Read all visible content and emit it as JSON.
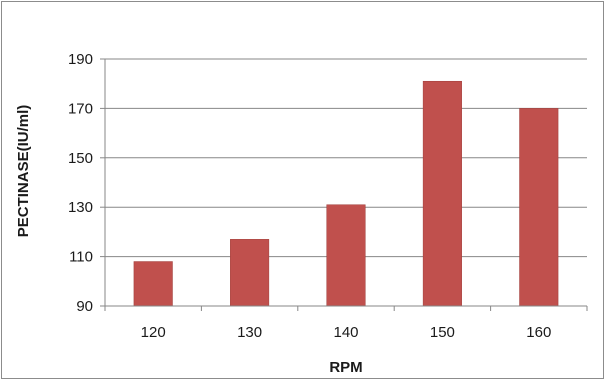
{
  "chart_data": {
    "type": "bar",
    "title": "",
    "xlabel": "RPM",
    "ylabel": "PECTINASE(IU/ml)",
    "categories": [
      "120",
      "130",
      "140",
      "150",
      "160"
    ],
    "values": [
      108,
      117,
      131,
      181,
      170
    ],
    "ylim": [
      90,
      190
    ],
    "yticks": [
      "90",
      "110",
      "130",
      "150",
      "170",
      "190"
    ],
    "grid": true,
    "legend": "none",
    "colors": {
      "bar": "#c0504d",
      "bar_edge": "#9e3b38",
      "grid": "#878787",
      "axis": "#878787"
    }
  }
}
